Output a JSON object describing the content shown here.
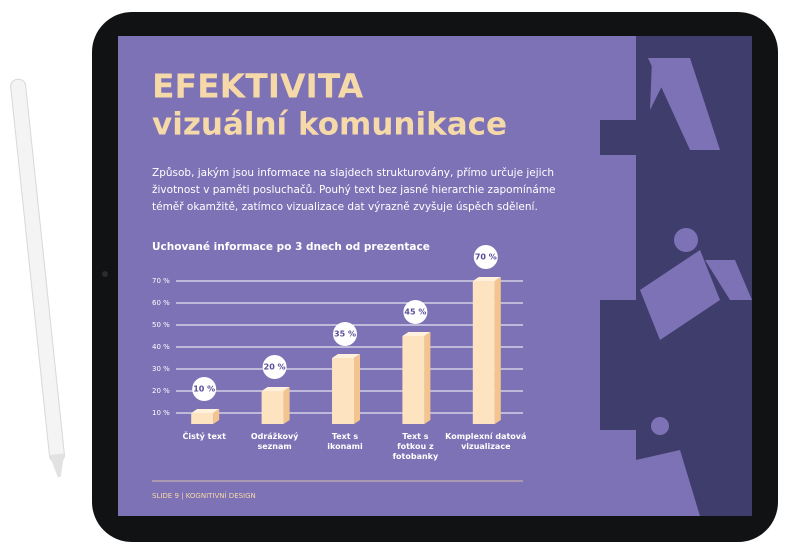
{
  "slide": {
    "title": [
      "EFEKTIVITA",
      "vizuální komunikace"
    ],
    "body": [
      "Způsob, jakým jsou informace na slajdech strukturovány, přímo určuje jejich",
      "životnost v paměti posluchačů. Pouhý text bez jasné hierarchie zapomínáme",
      "téměř okamžitě, zatímco vizualizace dat výrazně zvyšuje úspěch sdělení."
    ],
    "footer": "SLIDE 9  |  KOGNITIVNÍ DESIGN"
  },
  "chart_data": {
    "type": "bar",
    "title": "Uchované informace po 3 dnech od prezentace",
    "categories": [
      "Čistý text",
      "Odrážkový seznam",
      "Text s ikonami",
      "Text s fotkou z fotobanky",
      "Komplexní datová vizualizace"
    ],
    "values": [
      10,
      20,
      35,
      45,
      70
    ],
    "value_labels": [
      "10 %",
      "20 %",
      "35 %",
      "45 %",
      "70 %"
    ],
    "color": "#fde3c0",
    "ylim": [
      5,
      70
    ],
    "yticks": [
      {
        "value": 10,
        "label": "10 %"
      },
      {
        "value": 20,
        "label": "20 %"
      },
      {
        "value": 30,
        "label": "30 %"
      },
      {
        "value": 40,
        "label": "40 %"
      },
      {
        "value": 50,
        "label": "50 %"
      },
      {
        "value": 60,
        "label": "60 %"
      },
      {
        "value": 70,
        "label": "70 %"
      }
    ],
    "grid": true
  }
}
